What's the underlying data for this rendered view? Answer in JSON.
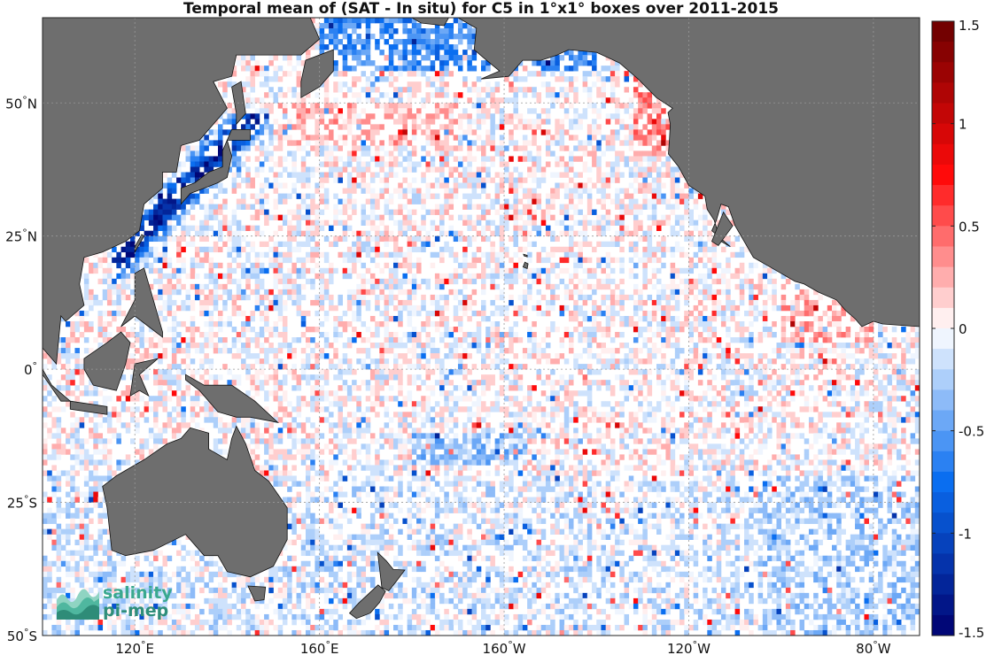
{
  "title": "Temporal mean of (SAT - In situ) for C5 in 1°x1° boxes over 2011-2015",
  "map": {
    "projection": "equirectangular",
    "lon_range": [
      100,
      290
    ],
    "lat_range": [
      -50,
      66
    ],
    "grid": true,
    "land_color": "#6e6e6e",
    "latitude_ticks": [
      {
        "value": 50,
        "label": "50°N"
      },
      {
        "value": 25,
        "label": "25°N"
      },
      {
        "value": 0,
        "label": "0°"
      },
      {
        "value": -25,
        "label": "25°S"
      },
      {
        "value": -50,
        "label": "50°S"
      }
    ],
    "longitude_ticks": [
      {
        "value": 120,
        "label": "120°E"
      },
      {
        "value": 160,
        "label": "160°E"
      },
      {
        "value": 200,
        "label": "160°W"
      },
      {
        "value": 240,
        "label": "120°W"
      },
      {
        "value": 280,
        "label": "80°W"
      }
    ]
  },
  "colorbar": {
    "range": [
      -1.5,
      1.5
    ],
    "levels": 30,
    "ticks": [
      {
        "value": 1.5,
        "label": "1.5"
      },
      {
        "value": 1,
        "label": "1"
      },
      {
        "value": 0.5,
        "label": "0.5"
      },
      {
        "value": 0,
        "label": "0"
      },
      {
        "value": -0.5,
        "label": "-0.5"
      },
      {
        "value": -1,
        "label": "-1"
      },
      {
        "value": -1.5,
        "label": "-1.5"
      }
    ]
  },
  "logo": {
    "line1": "salinity",
    "line2": "pi-mep"
  }
}
